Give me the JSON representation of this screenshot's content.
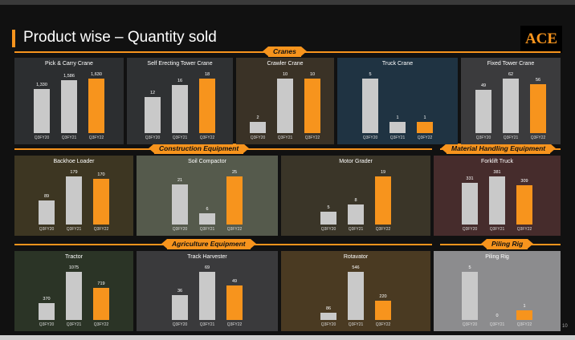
{
  "title": "Product wise – Quantity sold",
  "logo": "ACE",
  "page_number": "10",
  "colors": {
    "prior": "#c9c9c9",
    "current": "#f7941d",
    "accent": "#f7941d"
  },
  "section_tags": {
    "cranes": "Cranes",
    "construction": "Construction Equipment",
    "material": "Material Handling Equipment",
    "agriculture": "Agriculture Equipment",
    "piling": "Piling Rig"
  },
  "chart_data": [
    {
      "type": "bar",
      "title": "Pick & Carry Crane",
      "categories": [
        "Q3FY20",
        "Q3FY21",
        "Q3FY22"
      ],
      "values": [
        1330,
        1586,
        1630
      ],
      "value_labels": [
        "1,330",
        "1,586",
        "1,630"
      ]
    },
    {
      "type": "bar",
      "title": "Self Erecting Tower Crane",
      "categories": [
        "Q3FY20",
        "Q3FY21",
        "Q3FY22"
      ],
      "values": [
        12,
        16,
        18
      ],
      "value_labels": [
        "12",
        "16",
        "18"
      ]
    },
    {
      "type": "bar",
      "title": "Crawler Crane",
      "categories": [
        "Q3FY20",
        "Q3FY21",
        "Q3FY22"
      ],
      "values": [
        2,
        10,
        10
      ],
      "value_labels": [
        "2",
        "10",
        "10"
      ]
    },
    {
      "type": "bar",
      "title": "Truck Crane",
      "categories": [
        "Q3FY20",
        "Q3FY21",
        "Q3FY22"
      ],
      "values": [
        5,
        1,
        1
      ],
      "value_labels": [
        "5",
        "1",
        "1"
      ]
    },
    {
      "type": "bar",
      "title": "Fixed Tower Crane",
      "categories": [
        "Q3FY20",
        "Q3FY21",
        "Q3FY22"
      ],
      "values": [
        49,
        62,
        56
      ],
      "value_labels": [
        "49",
        "62",
        "56"
      ]
    },
    {
      "type": "bar",
      "title": "Backhoe Loader",
      "categories": [
        "Q3FY20",
        "Q3FY21",
        "Q3FY22"
      ],
      "values": [
        89,
        179,
        170
      ],
      "value_labels": [
        "89",
        "179",
        "170"
      ]
    },
    {
      "type": "bar",
      "title": "Soil Compactor",
      "categories": [
        "Q3FY20",
        "Q3FY21",
        "Q3FY22"
      ],
      "values": [
        21,
        6,
        25
      ],
      "value_labels": [
        "21",
        "6",
        "25"
      ]
    },
    {
      "type": "bar",
      "title": "Motor Grader",
      "categories": [
        "Q3FY20",
        "Q3FY21",
        "Q3FY22"
      ],
      "values": [
        5,
        8,
        19
      ],
      "value_labels": [
        "5",
        "8",
        "19"
      ]
    },
    {
      "type": "bar",
      "title": "Forklift Truck",
      "categories": [
        "Q3FY20",
        "Q3FY21",
        "Q3FY22"
      ],
      "values": [
        331,
        381,
        309
      ],
      "value_labels": [
        "331",
        "381",
        "309"
      ]
    },
    {
      "type": "bar",
      "title": "Tractor",
      "categories": [
        "Q3FY20",
        "Q3FY21",
        "Q3FY22"
      ],
      "values": [
        370,
        1075,
        719
      ],
      "value_labels": [
        "370",
        "1075",
        "719"
      ]
    },
    {
      "type": "bar",
      "title": "Track Harvester",
      "categories": [
        "Q3FY20",
        "Q3FY21",
        "Q3FY22"
      ],
      "values": [
        36,
        69,
        49
      ],
      "value_labels": [
        "36",
        "69",
        "49"
      ]
    },
    {
      "type": "bar",
      "title": "Rotavator",
      "categories": [
        "Q3FY20",
        "Q3FY21",
        "Q3FY22"
      ],
      "values": [
        86,
        546,
        220
      ],
      "value_labels": [
        "86",
        "546",
        "220"
      ]
    },
    {
      "type": "bar",
      "title": "Piling Rig",
      "categories": [
        "Q3FY20",
        "Q3FY21",
        "Q3FY22"
      ],
      "values": [
        5,
        0,
        1
      ],
      "value_labels": [
        "5",
        "0",
        "1"
      ]
    }
  ]
}
